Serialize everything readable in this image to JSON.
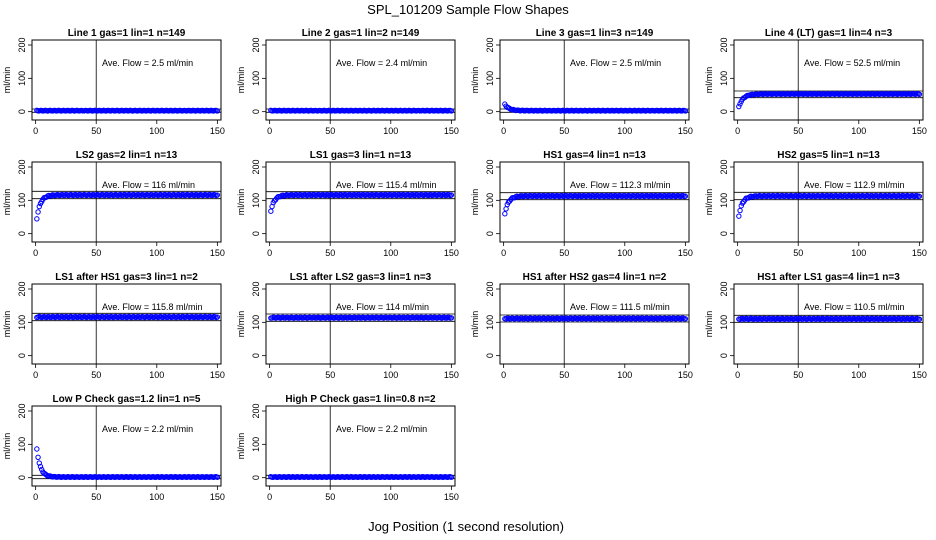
{
  "figure": {
    "title": "SPL_101209  Sample Flow Shapes",
    "xlabel": "Jog Position (1 second resolution)"
  },
  "style": {
    "point_color": "#0000ff",
    "line_color": "#000000",
    "background": "#ffffff"
  },
  "chart_data": [
    {
      "type": "scatter",
      "title": "Line 1 gas=1 lin=1 n=149",
      "ylabel": "ml/min",
      "annotation": "Ave. Flow =  2.5  ml/min",
      "xlim": [
        -3,
        153
      ],
      "ylim": [
        -25,
        215
      ],
      "xticks": [
        0,
        50,
        100,
        150
      ],
      "yticks": [
        0,
        100,
        200
      ],
      "vline": 50,
      "hlines": [
        -2,
        8
      ],
      "series": [
        {
          "name": "flow",
          "shape": "flat",
          "level": 3,
          "start": 3,
          "tau": 4,
          "noise": 1
        }
      ]
    },
    {
      "type": "scatter",
      "title": "Line 2 gas=1 lin=2 n=149",
      "ylabel": "ml/min",
      "annotation": "Ave. Flow =  2.4  ml/min",
      "xlim": [
        -3,
        153
      ],
      "ylim": [
        -25,
        215
      ],
      "xticks": [
        0,
        50,
        100,
        150
      ],
      "yticks": [
        0,
        100,
        200
      ],
      "vline": 50,
      "hlines": [
        -2,
        8
      ],
      "series": [
        {
          "name": "flow",
          "shape": "flat",
          "level": 3,
          "start": 3,
          "tau": 4,
          "noise": 1
        }
      ]
    },
    {
      "type": "scatter",
      "title": "Line 3 gas=1 lin=3 n=149",
      "ylabel": "ml/min",
      "annotation": "Ave. Flow =  2.5  ml/min",
      "xlim": [
        -3,
        153
      ],
      "ylim": [
        -25,
        215
      ],
      "xticks": [
        0,
        50,
        100,
        150
      ],
      "yticks": [
        0,
        100,
        200
      ],
      "vline": 50,
      "hlines": [
        -2,
        8
      ],
      "series": [
        {
          "name": "flow",
          "shape": "decay",
          "level": 3,
          "start": 28,
          "tau": 3.5,
          "noise": 1
        }
      ]
    },
    {
      "type": "scatter",
      "title": "Line 4 (LT) gas=1 lin=4 n=3",
      "ylabel": "ml/min",
      "annotation": "Ave. Flow =  52.5  ml/min",
      "xlim": [
        -3,
        153
      ],
      "ylim": [
        -25,
        215
      ],
      "xticks": [
        0,
        50,
        100,
        150
      ],
      "yticks": [
        0,
        100,
        200
      ],
      "vline": 50,
      "hlines": [
        42,
        62
      ],
      "series": [
        {
          "name": "flow",
          "shape": "rise",
          "level": 53,
          "start": 2,
          "tau": 3.5,
          "noise": 1
        }
      ]
    },
    {
      "type": "scatter",
      "title": "LS2 gas=2 lin=1 n=13",
      "ylabel": "ml/min",
      "annotation": "Ave. Flow =  116  ml/min",
      "xlim": [
        -3,
        153
      ],
      "ylim": [
        -25,
        215
      ],
      "xticks": [
        0,
        50,
        100,
        150
      ],
      "yticks": [
        0,
        100,
        200
      ],
      "vline": 50,
      "hlines": [
        105,
        127
      ],
      "series": [
        {
          "name": "flow",
          "shape": "rise",
          "level": 116,
          "start": 18,
          "tau": 3,
          "noise": 1.5
        }
      ]
    },
    {
      "type": "scatter",
      "title": "LS1 gas=3 lin=1 n=13",
      "ylabel": "ml/min",
      "annotation": "Ave. Flow =  115.4  ml/min",
      "xlim": [
        -3,
        153
      ],
      "ylim": [
        -25,
        215
      ],
      "xticks": [
        0,
        50,
        100,
        150
      ],
      "yticks": [
        0,
        100,
        200
      ],
      "vline": 50,
      "hlines": [
        105,
        126
      ],
      "series": [
        {
          "name": "flow",
          "shape": "rise",
          "level": 116,
          "start": 50,
          "tau": 3,
          "noise": 1.5
        }
      ]
    },
    {
      "type": "scatter",
      "title": "HS1 gas=4 lin=1 n=13",
      "ylabel": "ml/min",
      "annotation": "Ave. Flow =  112.3  ml/min",
      "xlim": [
        -3,
        153
      ],
      "ylim": [
        -25,
        215
      ],
      "xticks": [
        0,
        50,
        100,
        150
      ],
      "yticks": [
        0,
        100,
        200
      ],
      "vline": 50,
      "hlines": [
        102,
        123
      ],
      "series": [
        {
          "name": "flow",
          "shape": "rise",
          "level": 113,
          "start": 40,
          "tau": 3,
          "noise": 1.5
        }
      ]
    },
    {
      "type": "scatter",
      "title": "HS2 gas=5 lin=1 n=13",
      "ylabel": "ml/min",
      "annotation": "Ave. Flow =  112.9  ml/min",
      "xlim": [
        -3,
        153
      ],
      "ylim": [
        -25,
        215
      ],
      "xticks": [
        0,
        50,
        100,
        150
      ],
      "yticks": [
        0,
        100,
        200
      ],
      "vline": 50,
      "hlines": [
        102,
        124
      ],
      "series": [
        {
          "name": "flow",
          "shape": "rise",
          "level": 113,
          "start": 30,
          "tau": 3,
          "noise": 1.5
        }
      ]
    },
    {
      "type": "scatter",
      "title": "LS1 after HS1 gas=3 lin=1 n=2",
      "ylabel": "ml/min",
      "annotation": "Ave. Flow =  115.8  ml/min",
      "xlim": [
        -3,
        153
      ],
      "ylim": [
        -25,
        215
      ],
      "xticks": [
        0,
        50,
        100,
        150
      ],
      "yticks": [
        0,
        100,
        200
      ],
      "vline": 50,
      "hlines": [
        105,
        127
      ],
      "series": [
        {
          "name": "flow",
          "shape": "flat",
          "level": 116,
          "start": 116,
          "tau": 3,
          "noise": 1.5
        }
      ]
    },
    {
      "type": "scatter",
      "title": "LS1 after LS2 gas=3 lin=1 n=3",
      "ylabel": "ml/min",
      "annotation": "Ave. Flow =  114  ml/min",
      "xlim": [
        -3,
        153
      ],
      "ylim": [
        -25,
        215
      ],
      "xticks": [
        0,
        50,
        100,
        150
      ],
      "yticks": [
        0,
        100,
        200
      ],
      "vline": 50,
      "hlines": [
        103,
        125
      ],
      "series": [
        {
          "name": "flow",
          "shape": "flat",
          "level": 114,
          "start": 114,
          "tau": 3,
          "noise": 1.5
        }
      ]
    },
    {
      "type": "scatter",
      "title": "HS1 after HS2 gas=4 lin=1 n=2",
      "ylabel": "ml/min",
      "annotation": "Ave. Flow =  111.5  ml/min",
      "xlim": [
        -3,
        153
      ],
      "ylim": [
        -25,
        215
      ],
      "xticks": [
        0,
        50,
        100,
        150
      ],
      "yticks": [
        0,
        100,
        200
      ],
      "vline": 50,
      "hlines": [
        101,
        122
      ],
      "series": [
        {
          "name": "flow",
          "shape": "flat",
          "level": 111.5,
          "start": 111.5,
          "tau": 3,
          "noise": 1.5
        }
      ]
    },
    {
      "type": "scatter",
      "title": "HS1 after LS1 gas=4 lin=1 n=3",
      "ylabel": "ml/min",
      "annotation": "Ave. Flow =  110.5  ml/min",
      "xlim": [
        -3,
        153
      ],
      "ylim": [
        -25,
        215
      ],
      "xticks": [
        0,
        50,
        100,
        150
      ],
      "yticks": [
        0,
        100,
        200
      ],
      "vline": 50,
      "hlines": [
        100,
        121
      ],
      "series": [
        {
          "name": "flow",
          "shape": "flat",
          "level": 110.5,
          "start": 110.5,
          "tau": 3,
          "noise": 1.5
        }
      ]
    },
    {
      "type": "scatter",
      "title": "Low P Check gas=1.2 lin=1 n=5",
      "ylabel": "ml/min",
      "annotation": "Ave. Flow =  2.2  ml/min",
      "xlim": [
        -3,
        153
      ],
      "ylim": [
        -25,
        215
      ],
      "xticks": [
        0,
        50,
        100,
        150
      ],
      "yticks": [
        0,
        100,
        200
      ],
      "vline": 50,
      "hlines": [
        -3,
        7
      ],
      "series": [
        {
          "name": "flow",
          "shape": "decay",
          "level": 2,
          "start": 118,
          "tau": 3,
          "noise": 1
        }
      ]
    },
    {
      "type": "scatter",
      "title": "High P Check gas=1 lin=0.8 n=2",
      "ylabel": "ml/min",
      "annotation": "Ave. Flow =  2.2  ml/min",
      "xlim": [
        -3,
        153
      ],
      "ylim": [
        -25,
        215
      ],
      "xticks": [
        0,
        50,
        100,
        150
      ],
      "yticks": [
        0,
        100,
        200
      ],
      "vline": 50,
      "hlines": [
        -3,
        7
      ],
      "series": [
        {
          "name": "flow",
          "shape": "flat",
          "level": 2,
          "start": 2,
          "tau": 3,
          "noise": 1
        }
      ]
    }
  ]
}
